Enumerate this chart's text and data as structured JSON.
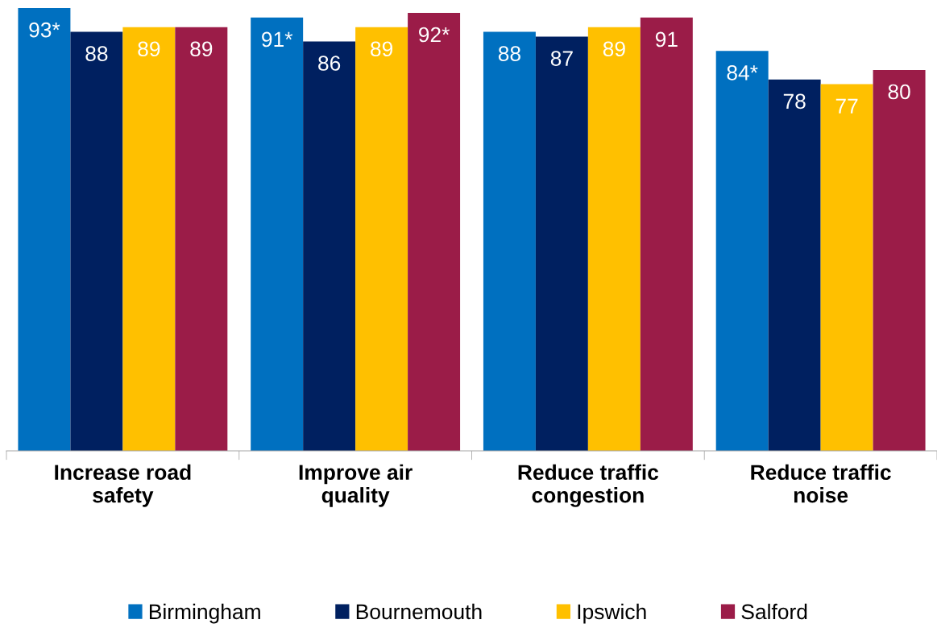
{
  "chart_data": {
    "type": "bar",
    "relative": false,
    "categories": [
      "Increase road\nsafety",
      "Improve air\nquality",
      "Reduce traffic\ncongestion",
      "Reduce traffic\nnoise"
    ],
    "series": [
      {
        "name": "Birmingham",
        "color": "#0070c0",
        "values": [
          93,
          91,
          88,
          84
        ],
        "value_labels": [
          "93*",
          "91*",
          "88",
          "84*"
        ]
      },
      {
        "name": "Bournemouth",
        "color": "#002060",
        "values": [
          88,
          86,
          87,
          78
        ],
        "value_labels": [
          "88",
          "86",
          "87",
          "78"
        ]
      },
      {
        "name": "Ipswich",
        "color": "#ffc000",
        "values": [
          89,
          89,
          89,
          77
        ],
        "value_labels": [
          "89",
          "89",
          "89",
          "77"
        ]
      },
      {
        "name": "Salford",
        "color": "#9b1c48",
        "values": [
          89,
          92,
          91,
          80
        ],
        "value_labels": [
          "89",
          "92*",
          "91",
          "80"
        ]
      }
    ],
    "grid": false,
    "legend": "bottom"
  }
}
